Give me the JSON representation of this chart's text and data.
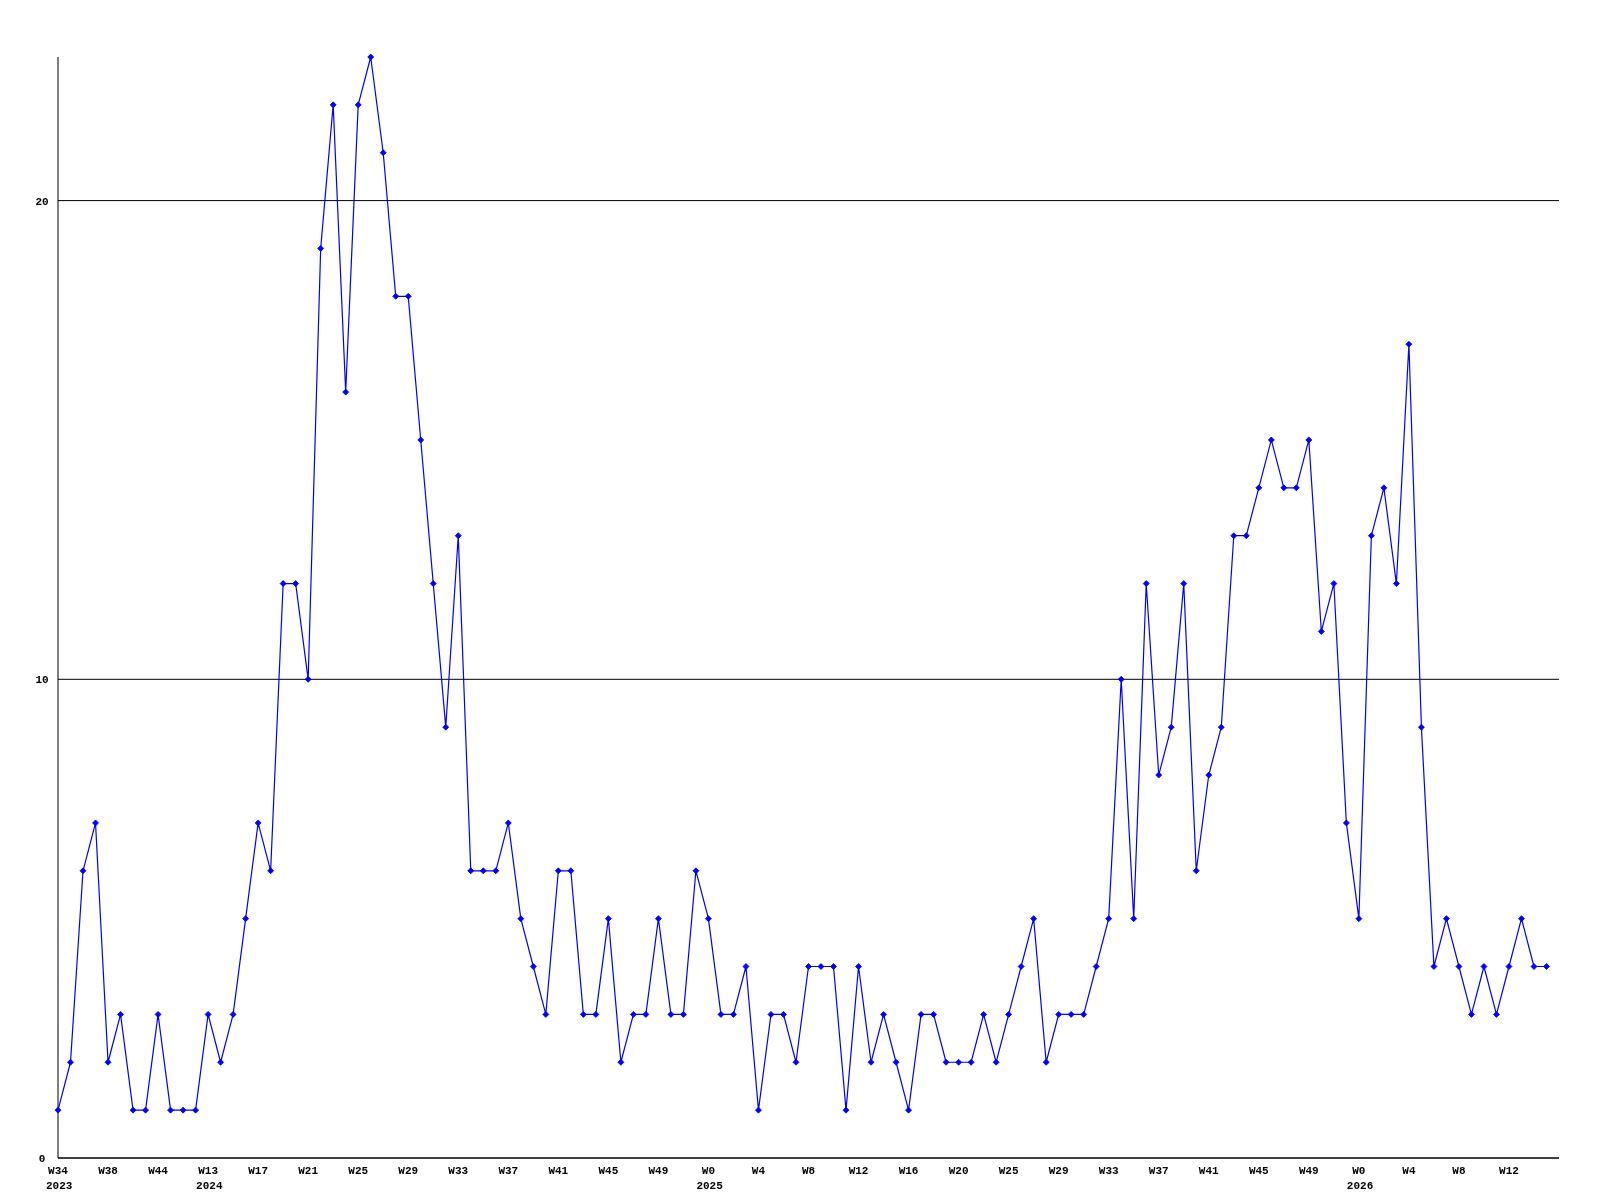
{
  "chart_data": {
    "type": "line",
    "categories": [
      "W34\n2023",
      null,
      null,
      null,
      "W38",
      null,
      null,
      null,
      "W44",
      null,
      null,
      null,
      "W13\n2024",
      null,
      null,
      null,
      "W17",
      null,
      null,
      null,
      "W21",
      null,
      null,
      null,
      "W25",
      null,
      null,
      null,
      "W29",
      null,
      null,
      null,
      "W33",
      null,
      null,
      null,
      "W37",
      null,
      null,
      null,
      "W41",
      null,
      null,
      null,
      "W45",
      null,
      null,
      null,
      "W49",
      null,
      null,
      null,
      "W0\n2025",
      null,
      null,
      null,
      "W4",
      null,
      null,
      null,
      "W8",
      null,
      null,
      null,
      "W12",
      null,
      null,
      null,
      "W16",
      null,
      null,
      null,
      "W20",
      null,
      null,
      null,
      "W25",
      null,
      null,
      null,
      "W29",
      null,
      null,
      null,
      "W33",
      null,
      null,
      null,
      "W37",
      null,
      null,
      null,
      "W41",
      null,
      null,
      null,
      "W45",
      null,
      null,
      null,
      "W49",
      null,
      null,
      null,
      "W0\n2026",
      null,
      null,
      null,
      "W4",
      null,
      null,
      null,
      "W8",
      null,
      null,
      null,
      "W12",
      null,
      null,
      null,
      null
    ],
    "series": [
      {
        "color": "#0000ff",
        "values": [
          1,
          2,
          6,
          7,
          2,
          3,
          1,
          1,
          3,
          1,
          1,
          1,
          3,
          2,
          3,
          5,
          7,
          6,
          12,
          12,
          10,
          19,
          22,
          16,
          22,
          23,
          21,
          18,
          18,
          15,
          12,
          9,
          13,
          6,
          6,
          6,
          7,
          5,
          4,
          3,
          6,
          6,
          3,
          3,
          5,
          2,
          3,
          3,
          5,
          3,
          3,
          6,
          5,
          3,
          3,
          4,
          1,
          3,
          3,
          2,
          4,
          4,
          4,
          1,
          4,
          2,
          3,
          2,
          1,
          3,
          3,
          2,
          2,
          2,
          3,
          2,
          3,
          4,
          5,
          2,
          3,
          3,
          3,
          4,
          5,
          10,
          5,
          12,
          8,
          9,
          12,
          6,
          8,
          9,
          13,
          13,
          14,
          15,
          14,
          14,
          15,
          11,
          12,
          7,
          5,
          13,
          14,
          12,
          17,
          9,
          4,
          5,
          4,
          3,
          4,
          3,
          4,
          5,
          4,
          4,
          null
        ]
      }
    ],
    "ylim": [
      0,
      23
    ],
    "yticks": [
      0,
      10,
      20
    ],
    "grid": "y",
    "marker": "diamond",
    "line_style": "solid"
  }
}
